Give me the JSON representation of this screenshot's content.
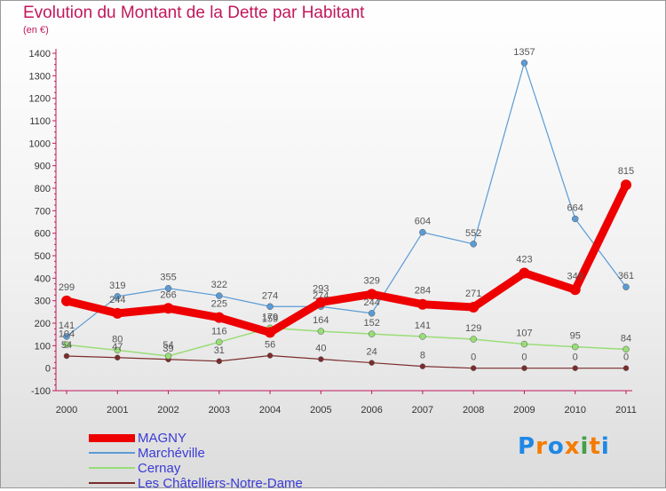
{
  "chart_data": {
    "type": "line",
    "title": "Evolution du Montant de la Dette par Habitant",
    "unit_label": "(en €)",
    "x": [
      "2000",
      "2001",
      "2002",
      "2003",
      "2004",
      "2005",
      "2006",
      "2007",
      "2008",
      "2009",
      "2010",
      "2011"
    ],
    "ylim": [
      -100,
      1400
    ],
    "yticks": [
      -100,
      0,
      100,
      200,
      300,
      400,
      500,
      600,
      700,
      800,
      900,
      1000,
      1100,
      1200,
      1300,
      1400
    ],
    "grid": false,
    "legend_position": "bottom-left",
    "series": [
      {
        "name": "MAGNY",
        "color": "#ee0000",
        "values": [
          299,
          244,
          266,
          225,
          159,
          293,
          329,
          284,
          271,
          423,
          349,
          815
        ],
        "labels": [
          "299",
          "244",
          "266",
          "225",
          "159",
          "293",
          "329",
          "284",
          "271",
          "423",
          "349",
          "815"
        ]
      },
      {
        "name": "Marchéville",
        "color": "#5b9bd5",
        "values": [
          141,
          319,
          355,
          322,
          274,
          274,
          244,
          604,
          552,
          1357,
          664,
          361
        ],
        "labels": [
          "141",
          "319",
          "355",
          "322",
          "274",
          "274",
          "244",
          "604",
          "552",
          "1357",
          "664",
          "361"
        ]
      },
      {
        "name": "Cernay",
        "color": "#99dd77",
        "values": [
          104,
          80,
          54,
          116,
          179,
          164,
          152,
          141,
          129,
          107,
          95,
          84
        ],
        "labels": [
          "104",
          "80",
          "54",
          "116",
          "179",
          "164",
          "152",
          "141",
          "129",
          "107",
          "95",
          "84"
        ]
      },
      {
        "name": "Les Châtelliers-Notre-Dame",
        "color": "#7b2c2c",
        "values": [
          54,
          47,
          39,
          31,
          56,
          40,
          24,
          8,
          0,
          0,
          0,
          0
        ],
        "labels": [
          "54",
          "47",
          "39",
          "31",
          "56",
          "40",
          "24",
          "8",
          "0",
          "0",
          "0",
          "0"
        ]
      }
    ]
  },
  "logo": {
    "text": "Proxiti",
    "letters": [
      "P",
      "r",
      "o",
      "x",
      "i",
      "t",
      "i"
    ],
    "colors": [
      "#1e88e5",
      "#f57c00",
      "#1e88e5",
      "#f57c00",
      "#43a047",
      "#f57c00",
      "#1e88e5"
    ]
  }
}
